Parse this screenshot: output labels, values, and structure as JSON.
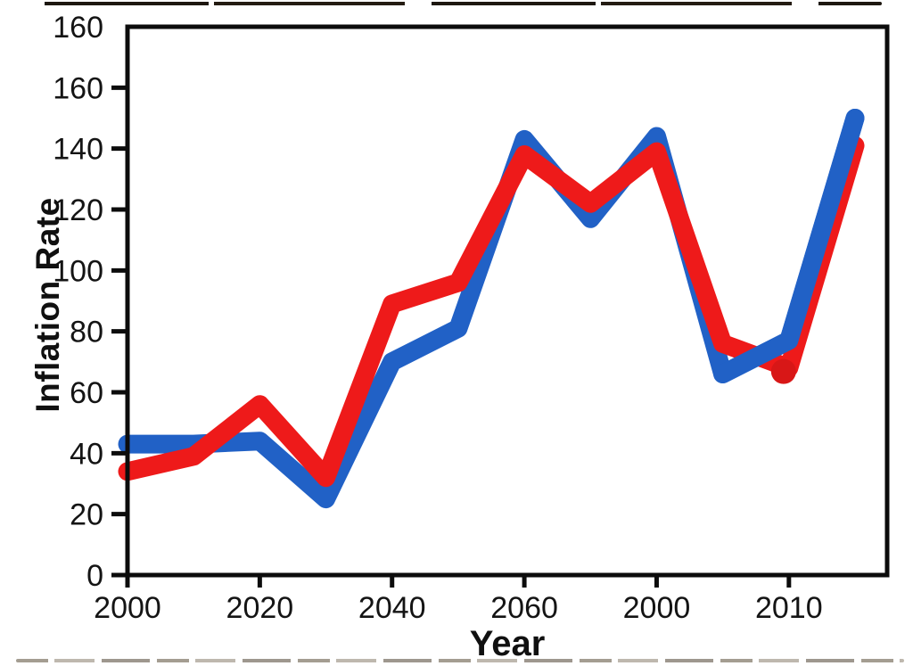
{
  "figure": {
    "background": "#ffffff",
    "frame_color": "#0c0c0c",
    "note": "synthetic line chart, no title, no legend, duplicated tick labels"
  },
  "chart_data": {
    "type": "line",
    "xlabel": "Year",
    "ylabel": "Inflation Rate",
    "x_tick_labels": [
      "2000",
      "2020",
      "2040",
      "2060",
      "2000",
      "2010"
    ],
    "x_ticks_at_point_index": [
      0,
      2,
      4,
      6,
      8,
      10
    ],
    "y_ticks": [
      160,
      140,
      120,
      100,
      80,
      60,
      40,
      20,
      0
    ],
    "y_tick_labels": [
      "160",
      "140",
      "120",
      "100",
      "80",
      "60",
      "40",
      "20",
      "0"
    ],
    "stray_top_y_label": "160",
    "ylim": [
      0,
      180
    ],
    "grid": false,
    "legend": null,
    "point_count": 12,
    "series": [
      {
        "name": "red-line",
        "color": "#ee1a1a",
        "values": [
          34,
          39,
          56,
          32,
          89,
          96,
          138,
          122,
          139,
          76,
          68,
          141
        ],
        "marker_index": 10,
        "marker_color": "#d81717"
      },
      {
        "name": "blue-line",
        "color": "#2161c6",
        "values": [
          43,
          43,
          44,
          25,
          70,
          81,
          143,
          117,
          144,
          66,
          77,
          150
        ],
        "overlay_from_index": 9
      }
    ]
  },
  "labels": {
    "x_axis_title": "Year",
    "y_axis_title": "Inflation Rate"
  }
}
